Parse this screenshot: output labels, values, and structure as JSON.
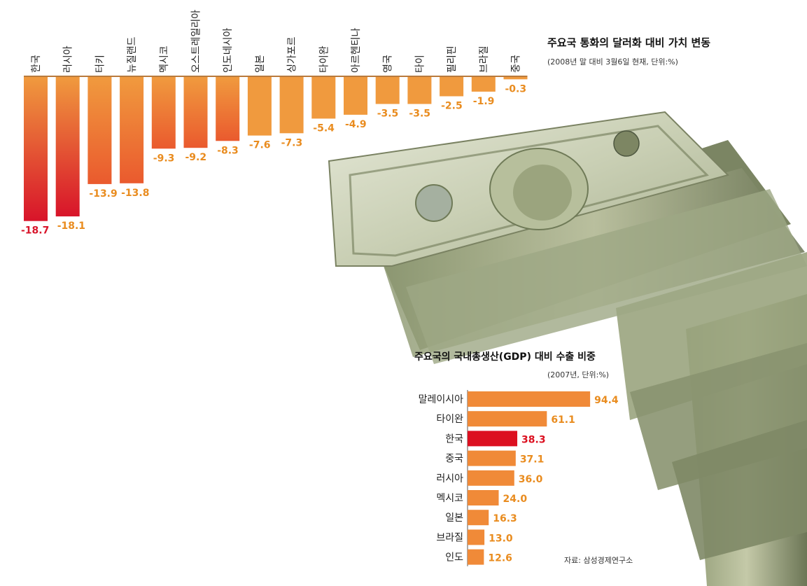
{
  "chart_data": [
    {
      "type": "bar",
      "title": "주요국 통화의 달러화 대비 가치 변동",
      "subtitle": "(2008년 말 대비 3월6일 현재, 단위:%)",
      "categories": [
        "한국",
        "러시아",
        "터키",
        "뉴질랜드",
        "멕시코",
        "오스트레일리아",
        "인도네시아",
        "일본",
        "싱가포르",
        "타이완",
        "아르헨티나",
        "영국",
        "타이",
        "필리핀",
        "브라질",
        "중국"
      ],
      "values": [
        -18.7,
        -18.1,
        -13.9,
        -13.8,
        -9.3,
        -9.2,
        -8.3,
        -7.6,
        -7.3,
        -5.4,
        -4.9,
        -3.5,
        -3.5,
        -2.5,
        -1.9,
        -0.3
      ],
      "value_labels": [
        "-18.7",
        "-18.1",
        "-13.9",
        "-13.8",
        "-9.3",
        "-9.2",
        "-8.3",
        "-7.6",
        "-7.3",
        "-5.4",
        "-4.9",
        "-3.5",
        "-3.5",
        "-2.5",
        "-1.9",
        "-0.3"
      ],
      "highlight_index": 0,
      "colors": {
        "bar_top": "#f09a3e",
        "bar_bottom_strong": "#d8142a",
        "bar_bottom_mild": "#ea5a2e",
        "label": "#e98c1f",
        "highlight": "#d8142a",
        "baseline": "#9b6a3a"
      }
    },
    {
      "type": "bar",
      "orientation": "horizontal",
      "title": "주요국의 국내총생산(GDP) 대비 수출 비중",
      "subtitle": "(2007년, 단위:%)",
      "categories": [
        "말레이시아",
        "타이완",
        "한국",
        "중국",
        "러시아",
        "멕시코",
        "일본",
        "브라질",
        "인도"
      ],
      "values": [
        94.4,
        61.1,
        38.3,
        37.1,
        36.0,
        24.0,
        16.3,
        13.0,
        12.6
      ],
      "value_labels": [
        "94.4",
        "61.1",
        "38.3",
        "37.1",
        "36.0",
        "24.0",
        "16.3",
        "13.0",
        "12.6"
      ],
      "highlight_index": 2,
      "colors": {
        "bar": "#f08a38",
        "highlight": "#dc1020",
        "label": "#e98c1f",
        "highlight_label": "#dc1020",
        "axis": "#555555"
      }
    }
  ],
  "source": "자료: 삼성경제연구소",
  "illustration": "stacked-dollar-bills"
}
